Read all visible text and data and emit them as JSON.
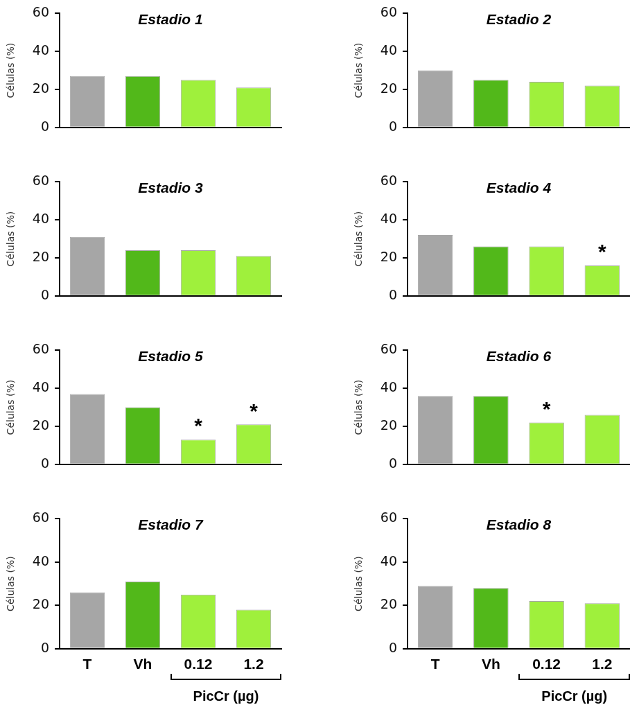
{
  "chart_data": [
    {
      "type": "bar",
      "title": "Estadio 1",
      "ylabel": "Células (%)",
      "categories": [
        null,
        null,
        null,
        null
      ],
      "values": [
        27,
        27,
        25,
        21
      ],
      "colors": [
        "#a6a6a6",
        "#52b81a",
        "#9ff03c",
        "#9ff03c"
      ],
      "ylim": [
        0,
        60
      ],
      "yticks": [
        0,
        20,
        40,
        60
      ]
    },
    {
      "type": "bar",
      "title": "Estadio 2",
      "ylabel": "Células (%)",
      "categories": [
        null,
        null,
        null,
        null
      ],
      "values": [
        30,
        25,
        24,
        22
      ],
      "colors": [
        "#a6a6a6",
        "#52b81a",
        "#9ff03c",
        "#9ff03c"
      ],
      "ylim": [
        0,
        60
      ],
      "yticks": [
        0,
        20,
        40,
        60
      ]
    },
    {
      "type": "bar",
      "title": "Estadio 3",
      "ylabel": "Células (%)",
      "categories": [
        null,
        null,
        null,
        null
      ],
      "values": [
        31,
        24,
        24,
        21
      ],
      "colors": [
        "#a6a6a6",
        "#52b81a",
        "#9ff03c",
        "#9ff03c"
      ],
      "ylim": [
        0,
        60
      ],
      "yticks": [
        0,
        20,
        40,
        60
      ]
    },
    {
      "type": "bar",
      "title": "Estadio 4",
      "ylabel": "Células (%)",
      "categories": [
        null,
        null,
        null,
        null
      ],
      "values": [
        32,
        26,
        26,
        16
      ],
      "colors": [
        "#a6a6a6",
        "#52b81a",
        "#9ff03c",
        "#9ff03c"
      ],
      "ylim": [
        0,
        60
      ],
      "yticks": [
        0,
        20,
        40,
        60
      ],
      "annotations": [
        {
          "text": "*",
          "y": 16
        }
      ]
    },
    {
      "type": "bar",
      "title": "Estadio 5",
      "ylabel": "Células (%)",
      "categories": [
        null,
        null,
        null,
        null
      ],
      "values": [
        37,
        30,
        13,
        21
      ],
      "colors": [
        "#a6a6a6",
        "#52b81a",
        "#9ff03c",
        "#9ff03c"
      ],
      "ylim": [
        0,
        60
      ],
      "yticks": [
        0,
        20,
        40,
        60
      ],
      "annotations": [
        {
          "text": "*",
          "y": 13
        },
        {
          "text": "*",
          "y": 21
        }
      ]
    },
    {
      "type": "bar",
      "title": "Estadio 6",
      "ylabel": "Células (%)",
      "categories": [
        null,
        null,
        null,
        null
      ],
      "values": [
        36,
        36,
        22,
        26
      ],
      "colors": [
        "#a6a6a6",
        "#52b81a",
        "#9ff03c",
        "#9ff03c"
      ],
      "ylim": [
        0,
        60
      ],
      "yticks": [
        0,
        20,
        40,
        60
      ],
      "annotations": [
        {
          "text": "*",
          "y": 22
        }
      ]
    },
    {
      "type": "bar",
      "title": "Estadio 7",
      "ylabel": "Células (%)",
      "xlabel": "PicCr (µg)",
      "categories": [
        "T",
        "Vh",
        "0.12",
        "1.2"
      ],
      "values": [
        26,
        31,
        25,
        18
      ],
      "colors": [
        "#a6a6a6",
        "#52b81a",
        "#9ff03c",
        "#9ff03c"
      ],
      "ylim": [
        0,
        60
      ],
      "yticks": [
        0,
        20,
        40,
        60
      ]
    },
    {
      "type": "bar",
      "title": "Estadio 8",
      "ylabel": "Células (%)",
      "xlabel": "PicCr (µg)",
      "categories": [
        "T",
        "Vh",
        "0.12",
        "1.2"
      ],
      "values": [
        29,
        28,
        22,
        21
      ],
      "colors": [
        "#a6a6a6",
        "#52b81a",
        "#9ff03c",
        "#9ff03c"
      ],
      "ylim": [
        0,
        60
      ],
      "yticks": [
        0,
        20,
        40,
        60
      ]
    }
  ]
}
